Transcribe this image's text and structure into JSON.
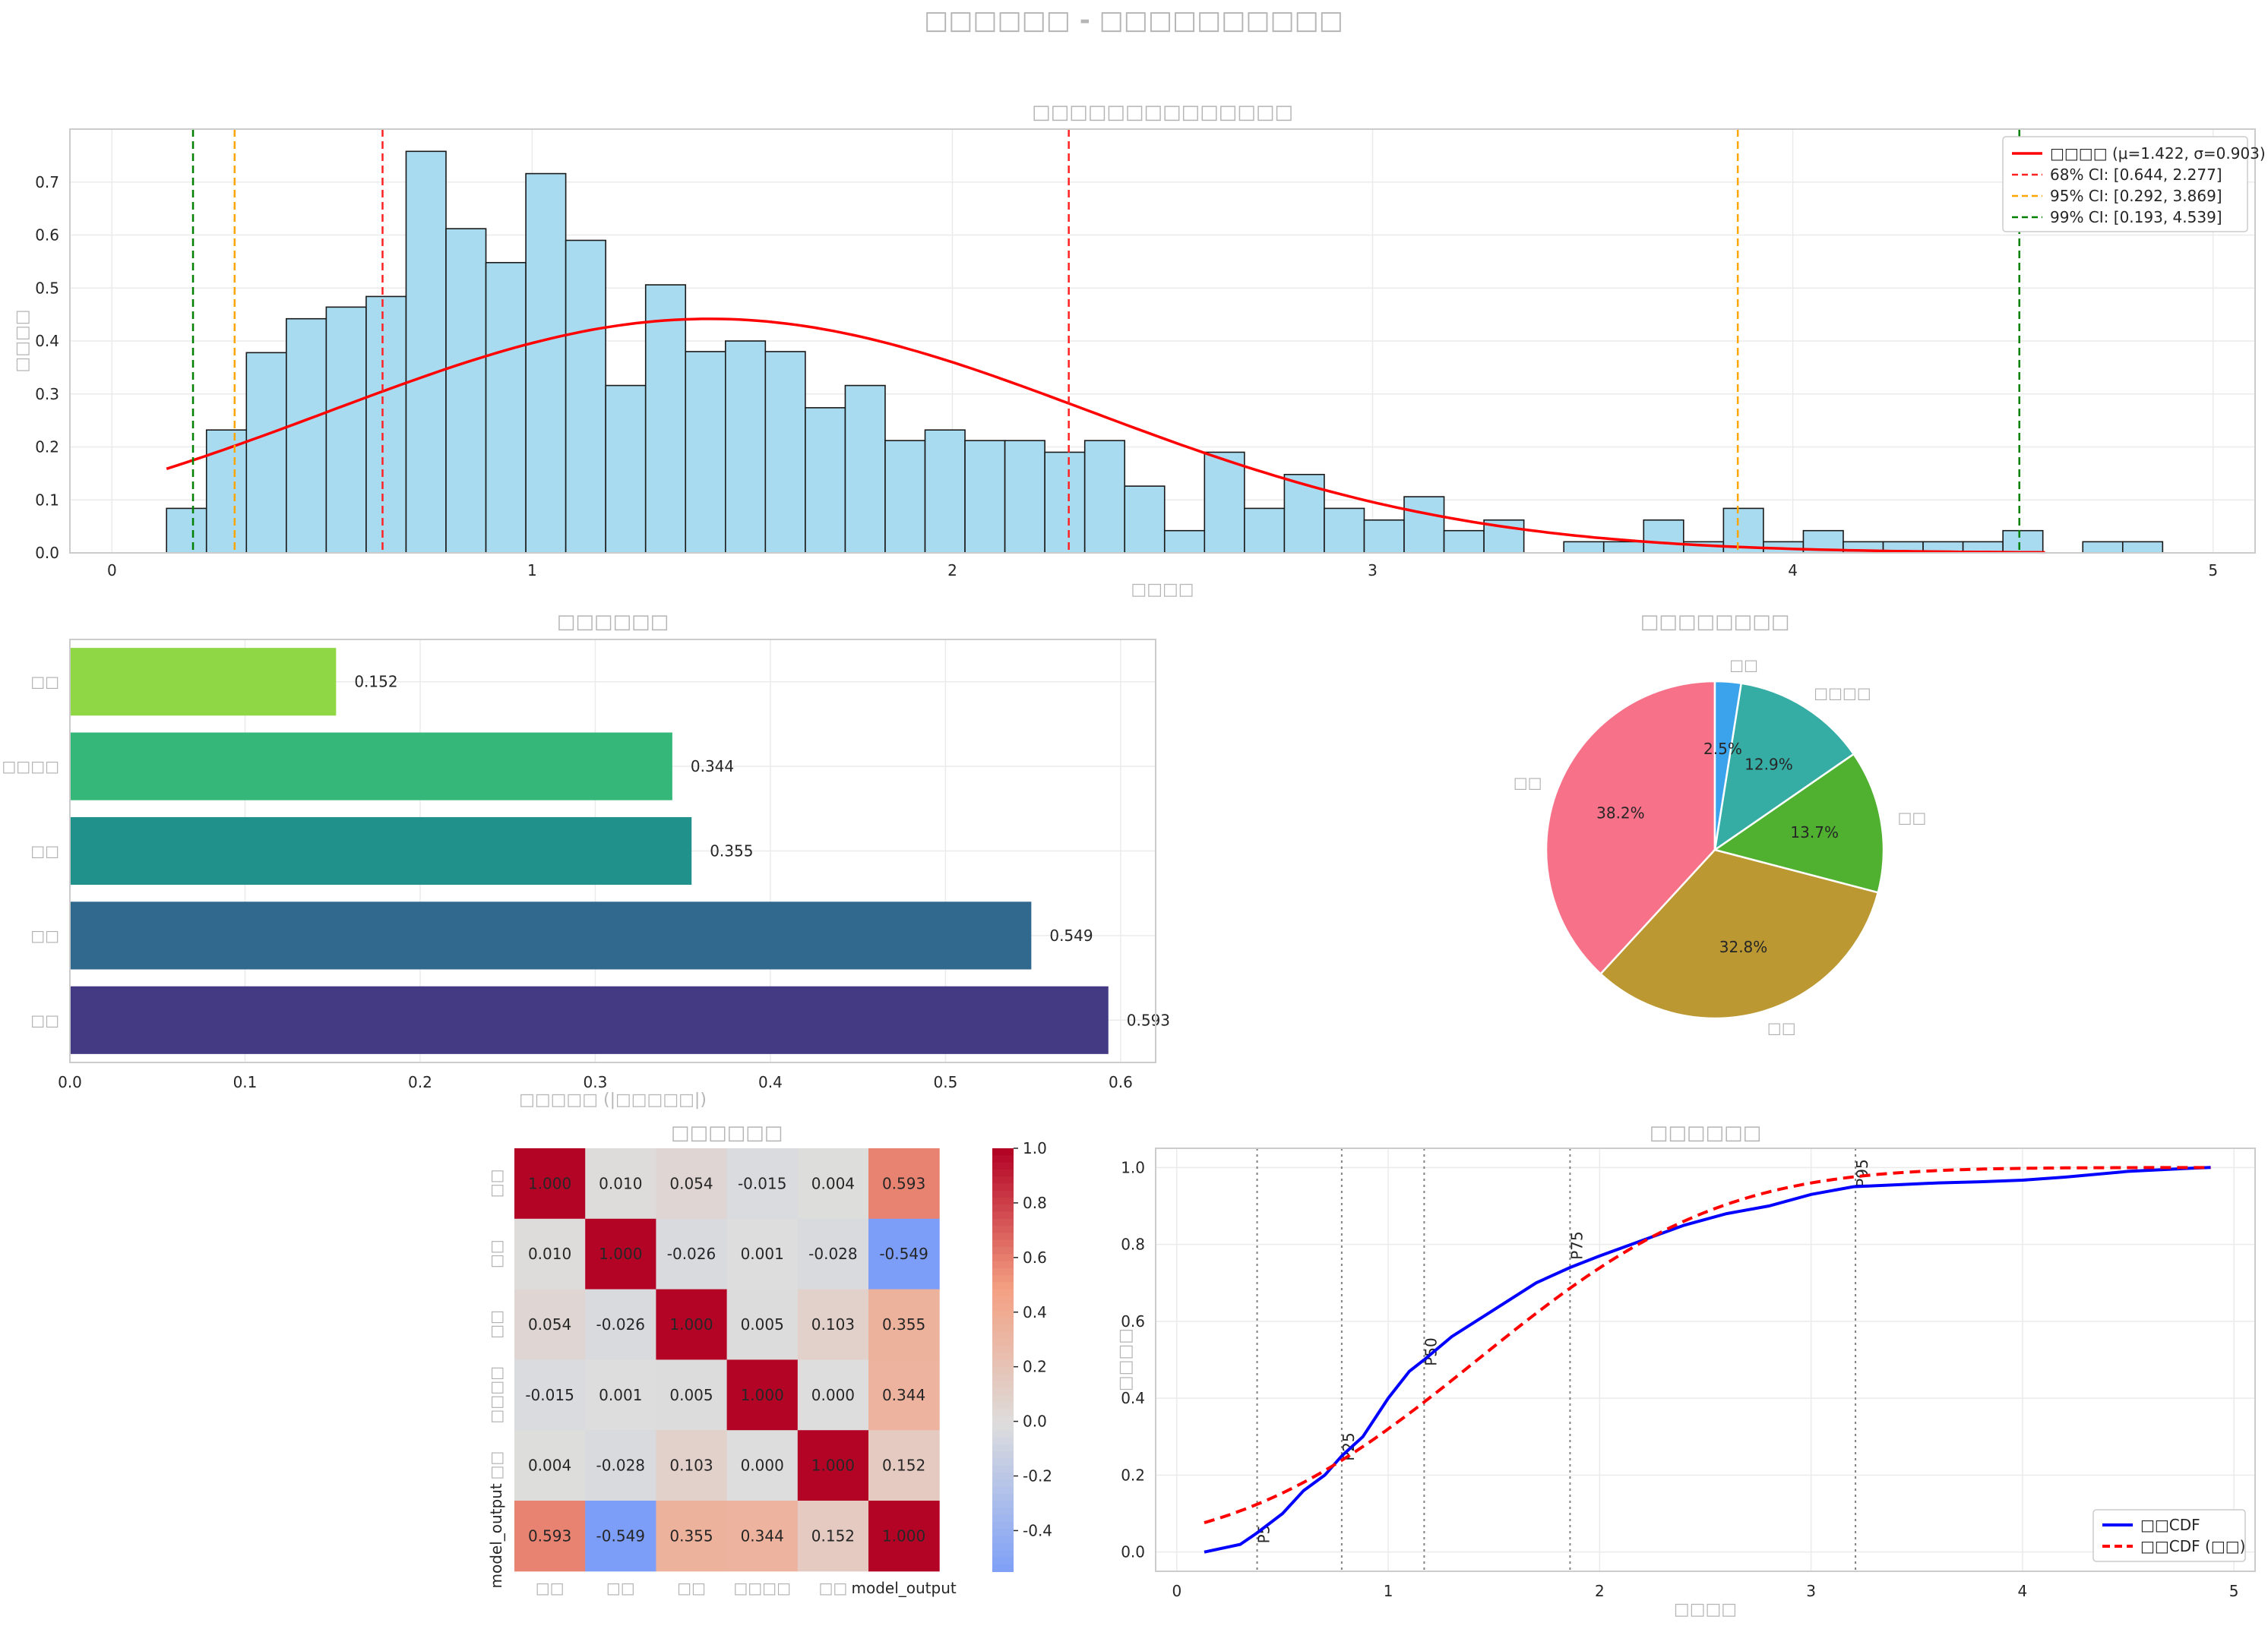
{
  "page_title": "□□□□□□ - □□□□□□□□□□",
  "colors": {
    "hist_fill": "#a8dbef",
    "normal_line": "#ff0000",
    "ci68": "#ff2222",
    "ci95": "#ffa500",
    "ci99": "#008000",
    "empirical_cdf": "#0000ff",
    "theory_cdf": "#ff0000",
    "bar_palette": [
      "#8fd744",
      "#35b779",
      "#21918c",
      "#31688e",
      "#443983"
    ],
    "pie_palette": [
      "#f77189",
      "#bb9832",
      "#50b131",
      "#36ada4",
      "#3ba3ec"
    ]
  },
  "chart_data": [
    {
      "type": "histogram",
      "title": "□□□□□□□□□□□□□□",
      "xlabel": "□□□□",
      "ylabel": "□□□□",
      "xlim": [
        -0.1,
        5.1
      ],
      "ylim": [
        0,
        0.8
      ],
      "xticks": [
        "0",
        "1",
        "2",
        "3",
        "4",
        "5"
      ],
      "yticks": [
        "0.0",
        "0.1",
        "0.2",
        "0.3",
        "0.4",
        "0.5",
        "0.6",
        "0.7"
      ],
      "bin_start": 0.13,
      "bin_width": 0.095,
      "densities": [
        0.084,
        0.232,
        0.378,
        0.442,
        0.464,
        0.484,
        0.758,
        0.612,
        0.548,
        0.716,
        0.59,
        0.316,
        0.506,
        0.38,
        0.4,
        0.38,
        0.274,
        0.316,
        0.212,
        0.232,
        0.212,
        0.212,
        0.19,
        0.212,
        0.126,
        0.042,
        0.19,
        0.084,
        0.148,
        0.084,
        0.062,
        0.106,
        0.042,
        0.062,
        0,
        0.021,
        0.021,
        0.062,
        0.021,
        0.084,
        0.021,
        0.042,
        0.021,
        0.021,
        0.021,
        0.021,
        0.042,
        0,
        0.021,
        0.021
      ],
      "normal_fit": {
        "mu": 1.422,
        "sigma": 0.903,
        "x_range": [
          0.13,
          4.6
        ]
      },
      "ci_lines": [
        {
          "label": "68% CI: [0.644, 2.277]",
          "lo": 0.644,
          "hi": 2.277
        },
        {
          "label": "95% CI: [0.292, 3.869]",
          "lo": 0.292,
          "hi": 3.869
        },
        {
          "label": "99% CI: [0.193, 4.539]",
          "lo": 0.193,
          "hi": 4.539
        }
      ],
      "legend": [
        "□□□□ (μ=1.422, σ=0.903)",
        "68% CI: [0.644, 2.277]",
        "95% CI: [0.292, 3.869]",
        "99% CI: [0.193, 4.539]"
      ],
      "legend_position": "top-right"
    },
    {
      "type": "bar",
      "orientation": "horizontal",
      "title": "□□□□□□",
      "xlabel": "□□□□□ (|□□□□□|)",
      "categories": [
        "□□",
        "□□□□",
        "□□",
        "□□",
        "□□"
      ],
      "values": [
        0.152,
        0.344,
        0.355,
        0.549,
        0.593
      ],
      "value_labels": [
        "0.152",
        "0.344",
        "0.355",
        "0.549",
        "0.593"
      ],
      "xlim": [
        0,
        0.62
      ],
      "xticks": [
        "0.0",
        "0.1",
        "0.2",
        "0.3",
        "0.4",
        "0.5",
        "0.6"
      ]
    },
    {
      "type": "pie",
      "title": "□□□□□□□□",
      "labels": [
        "□□",
        "□□",
        "□□",
        "□□□□",
        "□□"
      ],
      "values": [
        38.2,
        32.8,
        13.7,
        12.9,
        2.5
      ],
      "pct_labels": [
        "38.2%",
        "32.8%",
        "13.7%",
        "12.9%",
        "2.5%"
      ]
    },
    {
      "type": "heatmap",
      "title": "□□□□□□",
      "row_labels": [
        "□□",
        "□□",
        "□□",
        "□□□□",
        "□□",
        "model_output"
      ],
      "col_labels": [
        "□□",
        "□□",
        "□□",
        "□□□□",
        "□□",
        "model_output"
      ],
      "values": [
        [
          1.0,
          0.01,
          0.054,
          -0.015,
          0.004,
          0.593
        ],
        [
          0.01,
          1.0,
          -0.026,
          0.001,
          -0.028,
          -0.549
        ],
        [
          0.054,
          -0.026,
          1.0,
          0.005,
          0.103,
          0.355
        ],
        [
          -0.015,
          0.001,
          0.005,
          1.0,
          0.0,
          0.344
        ],
        [
          0.004,
          -0.028,
          0.103,
          0.0,
          1.0,
          0.152
        ],
        [
          0.593,
          -0.549,
          0.355,
          0.344,
          0.152,
          1.0
        ]
      ],
      "cell_labels": [
        [
          "1.000",
          "0.010",
          "0.054",
          "-0.015",
          "0.004",
          "0.593"
        ],
        [
          "0.010",
          "1.000",
          "-0.026",
          "0.001",
          "-0.028",
          "-0.549"
        ],
        [
          "0.054",
          "-0.026",
          "1.000",
          "0.005",
          "0.103",
          "0.355"
        ],
        [
          "-0.015",
          "0.001",
          "0.005",
          "1.000",
          "0.000",
          "0.344"
        ],
        [
          "0.004",
          "-0.028",
          "0.103",
          "0.000",
          "1.000",
          "0.152"
        ],
        [
          "0.593",
          "-0.549",
          "0.355",
          "0.344",
          "0.152",
          "1.000"
        ]
      ],
      "colorbar": {
        "range": [
          -0.549,
          1.0
        ],
        "ticks": [
          "-0.4",
          "-0.2",
          "0.0",
          "0.2",
          "0.4",
          "0.6",
          "0.8",
          "1.0"
        ],
        "colormap": "coolwarm"
      }
    },
    {
      "type": "line",
      "title": "□□□□□□",
      "xlabel": "□□□□",
      "ylabel": "□□□□",
      "xlim": [
        -0.1,
        5.1
      ],
      "ylim": [
        -0.05,
        1.05
      ],
      "xticks": [
        "0",
        "1",
        "2",
        "3",
        "4",
        "5"
      ],
      "yticks": [
        "0.0",
        "0.2",
        "0.4",
        "0.6",
        "0.8",
        "1.0"
      ],
      "series": [
        {
          "name": "□□CDF",
          "style": "solid",
          "x": [
            0.13,
            0.3,
            0.38,
            0.5,
            0.6,
            0.7,
            0.78,
            0.88,
            1.0,
            1.1,
            1.17,
            1.3,
            1.5,
            1.7,
            1.86,
            2.0,
            2.2,
            2.4,
            2.6,
            2.8,
            3.0,
            3.2,
            3.4,
            3.6,
            3.8,
            4.0,
            4.2,
            4.5,
            4.8,
            4.89
          ],
          "y": [
            0.0,
            0.02,
            0.05,
            0.1,
            0.16,
            0.2,
            0.25,
            0.3,
            0.4,
            0.47,
            0.5,
            0.56,
            0.63,
            0.7,
            0.74,
            0.77,
            0.81,
            0.85,
            0.88,
            0.9,
            0.93,
            0.95,
            0.955,
            0.96,
            0.963,
            0.967,
            0.975,
            0.99,
            0.998,
            1.0
          ]
        },
        {
          "name": "□□CDF (□□)",
          "style": "dashed",
          "normal": {
            "mu": 1.422,
            "sigma": 0.903
          },
          "x_range": [
            0.13,
            4.89
          ]
        }
      ],
      "percentiles": [
        {
          "label": "P5",
          "x": 0.38
        },
        {
          "label": "P25",
          "x": 0.78
        },
        {
          "label": "P50",
          "x": 1.17
        },
        {
          "label": "P75",
          "x": 1.86
        },
        {
          "label": "P95",
          "x": 3.21
        }
      ],
      "legend": [
        "□□CDF",
        "□□CDF (□□)"
      ],
      "legend_position": "lower-right"
    }
  ]
}
